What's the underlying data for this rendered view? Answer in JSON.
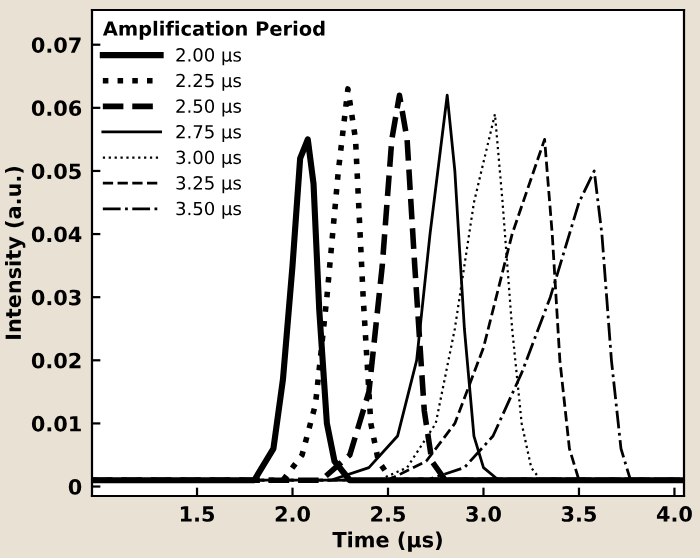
{
  "chart_data": {
    "type": "line",
    "xlabel": "Time (µs)",
    "ylabel": "Intensity (a.u.)",
    "legend_title": "Amplification Period",
    "legend": "top left",
    "grid": false,
    "marker": "none",
    "xlim": [
      0.95,
      4.05
    ],
    "xticks": [
      1.5,
      {
        "value": 2,
        "label": "2.0"
      },
      2.5,
      {
        "value": 3,
        "label": "3.0"
      },
      3.5,
      {
        "value": 4,
        "label": "4.0"
      }
    ],
    "ylim": [
      -0.0015,
      0.0755
    ],
    "yticks": [
      0,
      0.01,
      0.02,
      0.03,
      0.04,
      0.05,
      0.06,
      0.07
    ],
    "series": [
      {
        "name": "2.00 µs",
        "color": "#000000",
        "line_style": "solid",
        "x": [
          0.95,
          1.8,
          1.9,
          1.95,
          2.0,
          2.04,
          2.08,
          2.11,
          2.14,
          2.18,
          2.22,
          2.3,
          4.05
        ],
        "values": [
          0.001,
          0.001,
          0.006,
          0.017,
          0.035,
          0.052,
          0.055,
          0.048,
          0.028,
          0.01,
          0.004,
          0.001,
          0.001
        ]
      },
      {
        "name": "2.25 µs",
        "color": "#000000",
        "line_style": "dotted",
        "x": [
          0.95,
          1.95,
          2.05,
          2.12,
          2.18,
          2.24,
          2.29,
          2.33,
          2.37,
          2.41,
          2.45,
          2.52,
          4.05
        ],
        "values": [
          0.001,
          0.001,
          0.005,
          0.013,
          0.03,
          0.05,
          0.063,
          0.055,
          0.03,
          0.01,
          0.004,
          0.001,
          0.001
        ]
      },
      {
        "name": "2.50 µs",
        "color": "#000000",
        "line_style": "dashed",
        "x": [
          0.95,
          2.15,
          2.3,
          2.4,
          2.47,
          2.52,
          2.56,
          2.6,
          2.64,
          2.69,
          2.73,
          2.8,
          4.05
        ],
        "values": [
          0.001,
          0.001,
          0.005,
          0.015,
          0.035,
          0.055,
          0.062,
          0.055,
          0.035,
          0.012,
          0.004,
          0.001,
          0.001
        ]
      },
      {
        "name": "2.75 µs",
        "color": "#000000",
        "line_style": "solid",
        "x": [
          0.95,
          2.2,
          2.4,
          2.55,
          2.65,
          2.72,
          2.81,
          2.85,
          2.9,
          2.95,
          3.0,
          3.08,
          4.05
        ],
        "values": [
          0.001,
          0.001,
          0.003,
          0.008,
          0.02,
          0.04,
          0.062,
          0.05,
          0.025,
          0.008,
          0.003,
          0.001,
          0.001
        ]
      },
      {
        "name": "3.00 µs",
        "color": "#000000",
        "line_style": "dotted",
        "x": [
          0.95,
          2.45,
          2.6,
          2.75,
          2.85,
          2.95,
          3.06,
          3.1,
          3.15,
          3.2,
          3.25,
          3.3,
          4.05
        ],
        "values": [
          0.001,
          0.001,
          0.003,
          0.01,
          0.025,
          0.045,
          0.059,
          0.045,
          0.025,
          0.01,
          0.003,
          0.001,
          0.001
        ]
      },
      {
        "name": "3.25 µs",
        "color": "#000000",
        "line_style": "dashed",
        "x": [
          0.95,
          2.5,
          2.7,
          2.85,
          3.0,
          3.15,
          3.32,
          3.36,
          3.4,
          3.45,
          3.5,
          4.05
        ],
        "values": [
          0.001,
          0.001,
          0.004,
          0.01,
          0.022,
          0.04,
          0.055,
          0.04,
          0.02,
          0.006,
          0.001,
          0.001
        ]
      },
      {
        "name": "3.50 µs",
        "color": "#000000",
        "line_style": "dashdot",
        "x": [
          0.95,
          2.7,
          2.9,
          3.05,
          3.2,
          3.35,
          3.5,
          3.58,
          3.62,
          3.67,
          3.72,
          3.77,
          4.05
        ],
        "values": [
          0.001,
          0.001,
          0.003,
          0.008,
          0.018,
          0.03,
          0.045,
          0.05,
          0.04,
          0.02,
          0.006,
          0.001,
          0.001
        ]
      }
    ]
  }
}
